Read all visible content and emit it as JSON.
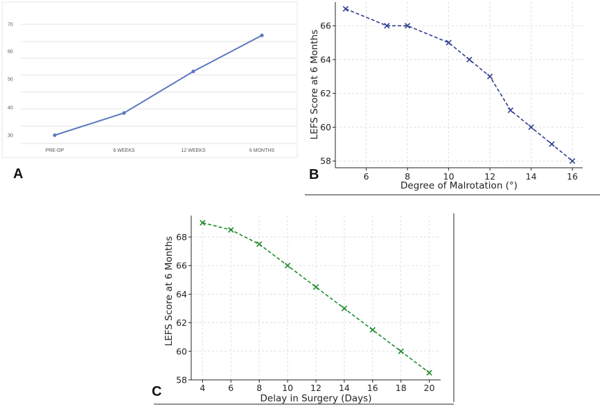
{
  "chart_data": [
    {
      "panel": "A",
      "type": "line",
      "categories": [
        "PRE-OP",
        "6 WEEKS",
        "12 WEEKS",
        "6 MONTHS"
      ],
      "values": [
        30,
        38,
        53,
        66
      ],
      "y_ticks": [
        "70",
        "60",
        "50",
        "40",
        "30"
      ],
      "color": "#5b77c0",
      "grid": true
    },
    {
      "panel": "B",
      "type": "line",
      "x": [
        5,
        7,
        8,
        10,
        11,
        12,
        13,
        14,
        15,
        16
      ],
      "y": [
        67,
        66,
        66,
        65,
        64,
        63,
        61,
        60,
        59,
        58
      ],
      "xlabel": "Degree of Malrotation (°)",
      "ylabel": "LEFS Score at 6 Months",
      "xlim": [
        4.5,
        16.5
      ],
      "ylim": [
        57.6,
        67.4
      ],
      "xticks": [
        6,
        8,
        10,
        12,
        14,
        16
      ],
      "yticks": [
        58,
        60,
        62,
        64,
        66
      ],
      "color": "#2e3c91",
      "marker": "x",
      "linestyle": "dashed",
      "grid": true
    },
    {
      "panel": "C",
      "type": "line",
      "x": [
        4,
        6,
        8,
        10,
        12,
        14,
        16,
        18,
        20
      ],
      "y": [
        69,
        68.5,
        67.5,
        66,
        64.5,
        63,
        61.5,
        60,
        58.5
      ],
      "xlabel": "Delay in Surgery (Days)",
      "ylabel": "LEFS Score at 6 Months",
      "xlim": [
        3.2,
        20.8
      ],
      "ylim": [
        58,
        69.5
      ],
      "xticks": [
        4,
        6,
        8,
        10,
        12,
        14,
        16,
        18,
        20
      ],
      "yticks": [
        58,
        60,
        62,
        64,
        66,
        68
      ],
      "color": "#1f8a2c",
      "marker": "x",
      "linestyle": "dashed",
      "grid": true
    }
  ],
  "labels": {
    "a": "A",
    "b": "B",
    "c": "C"
  }
}
